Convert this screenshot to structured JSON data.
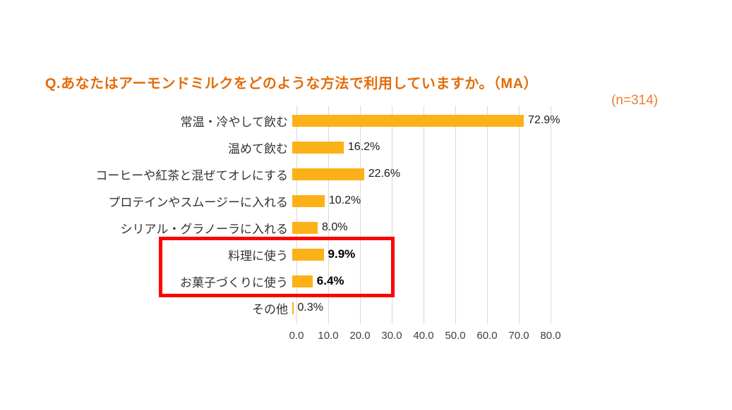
{
  "header": {
    "title": "Q.あなたはアーモンドミルクをどのような方法で利用していますか。（MA）",
    "sample_size": "(n=314)"
  },
  "chart_data": {
    "type": "bar",
    "orientation": "horizontal",
    "title": "Q.あなたはアーモンドミルクをどのような方法で利用していますか。（MA）",
    "sample_size": "(n=314)",
    "categories": [
      "常温・冷やして飲む",
      "温めて飲む",
      "コーヒーや紅茶と混ぜてオレにする",
      "プロテインやスムージーに入れる",
      "シリアル・グラノーラに入れる",
      "料理に使う",
      "お菓子づくりに使う",
      "その他"
    ],
    "values": [
      72.9,
      16.2,
      22.6,
      10.2,
      8.0,
      9.9,
      6.4,
      0.3
    ],
    "value_labels": [
      "72.9%",
      "16.2%",
      "22.6%",
      "10.2%",
      "8.0%",
      "9.9%",
      "6.4%",
      "0.3%"
    ],
    "highlighted_indices": [
      5,
      6
    ],
    "xlim": [
      0,
      80
    ],
    "x_ticks": [
      "0.0",
      "10.0",
      "20.0",
      "30.0",
      "40.0",
      "50.0",
      "60.0",
      "70.0",
      "80.0"
    ],
    "grid": true,
    "legend": false,
    "bar_color": "#FBB117",
    "title_color": "#E36C09",
    "n_color": "#ED7D31",
    "highlight_border_color": "#FF0000",
    "gridline_color": "#D9D9D9"
  }
}
